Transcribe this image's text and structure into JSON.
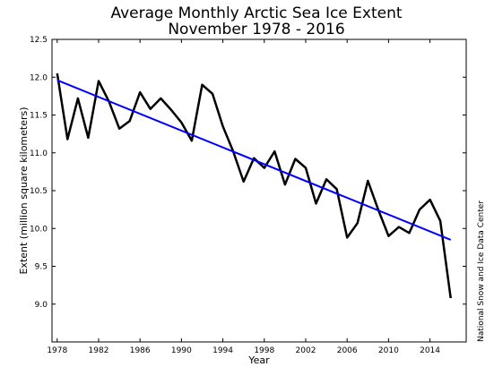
{
  "chart_data": {
    "type": "line",
    "title": "Average Monthly Arctic Sea Ice Extent",
    "subtitle": "November 1978 - 2016",
    "xlabel": "Year",
    "ylabel": "Extent (million square kilometers)",
    "credit": "National Snow and Ice Data Center",
    "xlim": [
      1977.5,
      2017.5
    ],
    "ylim": [
      8.5,
      12.5
    ],
    "xticks": [
      1978,
      1982,
      1986,
      1990,
      1994,
      1998,
      2002,
      2006,
      2010,
      2014
    ],
    "yticks": [
      "9.0",
      "9.5",
      "10.0",
      "10.5",
      "11.0",
      "11.5",
      "12.0",
      "12.5"
    ],
    "grid": false,
    "series": [
      {
        "color": "#000000",
        "x": [
          1978,
          1979,
          1980,
          1981,
          1982,
          1983,
          1984,
          1985,
          1986,
          1987,
          1988,
          1989,
          1990,
          1991,
          1992,
          1993,
          1994,
          1995,
          1996,
          1997,
          1998,
          1999,
          2000,
          2001,
          2002,
          2003,
          2004,
          2005,
          2006,
          2007,
          2008,
          2009,
          2010,
          2011,
          2012,
          2013,
          2014,
          2015,
          2016
        ],
        "values": [
          12.05,
          11.18,
          11.72,
          11.2,
          11.95,
          11.68,
          11.32,
          11.42,
          11.8,
          11.58,
          11.72,
          11.57,
          11.4,
          11.16,
          11.9,
          11.78,
          11.35,
          11.02,
          10.62,
          10.93,
          10.8,
          11.02,
          10.58,
          10.92,
          10.8,
          10.33,
          10.65,
          10.52,
          9.88,
          10.07,
          10.63,
          10.25,
          9.9,
          10.02,
          9.94,
          10.25,
          10.38,
          10.1,
          9.08
        ]
      },
      {
        "color": "#0000ff",
        "x": [
          1978,
          2016
        ],
        "values": [
          11.96,
          9.85
        ]
      }
    ]
  }
}
